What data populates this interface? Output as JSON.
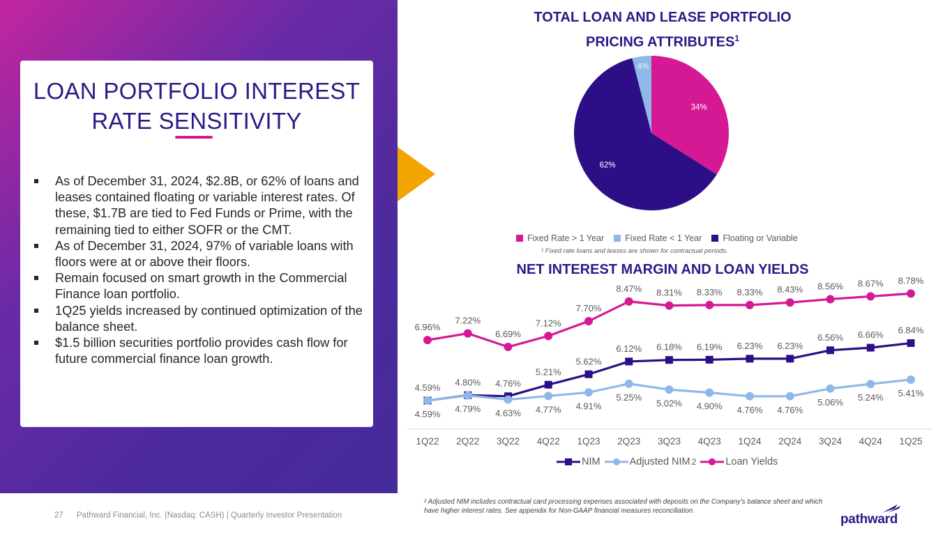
{
  "left": {
    "title_line1": "LOAN PORTFOLIO INTEREST",
    "title_line2": "RATE SENSITIVITY",
    "bullets": [
      "As of December 31, 2024, $2.8B, or 62% of loans and leases contained floating or variable interest rates. Of these, $1.7B are tied to Fed Funds or Prime, with the remaining tied to either SOFR or the CMT.",
      "As of December 31, 2024, 97% of variable loans with floors were at or above their floors.",
      "Remain focused on smart growth in the Commercial Finance loan portfolio.",
      "1Q25 yields increased by continued optimization of the balance sheet.",
      "$1.5 billion securities portfolio provides cash flow for future commercial finance loan growth."
    ]
  },
  "pie": {
    "title_line1": "TOTAL LOAN AND LEASE PORTFOLIO",
    "title_line2": "PRICING ATTRIBUTES",
    "title_sup": "1",
    "footnote": "¹ Fixed rate loans and leases are shown for contractual periods."
  },
  "nim": {
    "title": "NET INTEREST MARGIN AND LOAN YIELDS",
    "legend_sup": "2"
  },
  "footer": {
    "page_number": "27",
    "text": "Pathward Financial, Inc. (Nasdaq: CASH) | Quarterly Investor Presentation",
    "footnote": "² Adjusted NIM includes contractual card processing expenses associated with deposits on the Company’s balance sheet and which have higher interest rates. See appendix for Non-GAAP financial measures reconciliation.",
    "logo_text": "pathward"
  },
  "colors": {
    "magenta": "#d51894",
    "light_blue": "#8fb8e8",
    "navy": "#2c0f86",
    "gold": "#f2a500"
  },
  "chart_data": [
    {
      "type": "pie",
      "title": "TOTAL LOAN AND LEASE PORTFOLIO PRICING ATTRIBUTES",
      "legend": "bottom",
      "slices": [
        {
          "name": "Fixed Rate > 1 Year",
          "value": 34,
          "label": "34%",
          "color": "#d51894"
        },
        {
          "name": "Floating or Variable",
          "value": 62,
          "label": "62%",
          "color": "#2c0f86"
        },
        {
          "name": "Fixed Rate < 1 Year",
          "value": 4,
          "label": "4%",
          "color": "#8fb8e8"
        }
      ],
      "legend_order": [
        "Fixed Rate > 1 Year",
        "Fixed Rate < 1 Year",
        "Floating or Variable"
      ]
    },
    {
      "type": "line",
      "title": "NET INTEREST MARGIN AND LOAN YIELDS",
      "legend": "bottom",
      "categories": [
        "1Q22",
        "2Q22",
        "3Q22",
        "4Q22",
        "1Q23",
        "2Q23",
        "3Q23",
        "4Q23",
        "1Q24",
        "2Q24",
        "3Q24",
        "4Q24",
        "1Q25"
      ],
      "ylim": [
        3.5,
        9.5
      ],
      "grid": false,
      "series": [
        {
          "name": "NIM",
          "color": "#2c0f86",
          "marker": "square",
          "values": [
            4.59,
            4.8,
            4.76,
            5.21,
            5.62,
            6.12,
            6.18,
            6.19,
            6.23,
            6.23,
            6.56,
            6.66,
            6.84
          ],
          "labels": [
            "4.59%",
            "4.80%",
            "4.76%",
            "5.21%",
            "5.62%",
            "6.12%",
            "6.18%",
            "6.19%",
            "6.23%",
            "6.23%",
            "6.56%",
            "6.66%",
            "6.84%"
          ],
          "label_position": "above"
        },
        {
          "name": "Adjusted NIM",
          "color": "#8fb8e8",
          "marker": "circle",
          "values": [
            4.59,
            4.79,
            4.63,
            4.77,
            4.91,
            5.25,
            5.02,
            4.9,
            4.76,
            4.76,
            5.06,
            5.24,
            5.41
          ],
          "labels": [
            "4.59%",
            "4.79%",
            "4.63%",
            "4.77%",
            "4.91%",
            "5.25%",
            "5.02%",
            "4.90%",
            "4.76%",
            "4.76%",
            "5.06%",
            "5.24%",
            "5.41%"
          ],
          "label_position": "below"
        },
        {
          "name": "Loan Yields",
          "color": "#d51894",
          "marker": "circle",
          "values": [
            6.96,
            7.22,
            6.69,
            7.12,
            7.7,
            8.47,
            8.31,
            8.33,
            8.33,
            8.43,
            8.56,
            8.67,
            8.78
          ],
          "labels": [
            "6.96%",
            "7.22%",
            "6.69%",
            "7.12%",
            "7.70%",
            "8.47%",
            "8.31%",
            "8.33%",
            "8.33%",
            "8.43%",
            "8.56%",
            "8.67%",
            "8.78%"
          ],
          "label_position": "above"
        }
      ]
    }
  ]
}
